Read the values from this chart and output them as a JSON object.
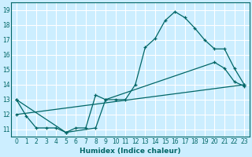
{
  "xlabel": "Humidex (Indice chaleur)",
  "bg_color": "#cceeff",
  "grid_color": "#ffffff",
  "line_color": "#006666",
  "xlim": [
    -0.5,
    23.5
  ],
  "ylim": [
    10.5,
    19.5
  ],
  "xticks": [
    0,
    1,
    2,
    3,
    4,
    5,
    6,
    7,
    8,
    9,
    10,
    11,
    12,
    13,
    14,
    15,
    16,
    17,
    18,
    19,
    20,
    21,
    22,
    23
  ],
  "yticks": [
    11,
    12,
    13,
    14,
    15,
    16,
    17,
    18,
    19
  ],
  "line1_x": [
    0,
    1,
    2,
    3,
    4,
    5,
    6,
    7,
    8,
    9,
    10,
    11,
    12,
    13,
    14,
    15,
    16,
    17,
    18,
    19,
    20,
    21,
    22,
    23
  ],
  "line1_y": [
    13.0,
    11.9,
    11.1,
    11.1,
    11.1,
    10.8,
    11.1,
    11.1,
    13.3,
    13.0,
    13.0,
    13.0,
    14.0,
    16.5,
    17.1,
    18.3,
    18.9,
    18.5,
    17.8,
    17.0,
    16.4,
    16.4,
    15.1,
    14.0
  ],
  "line2_x": [
    0,
    23
  ],
  "line2_y": [
    12.0,
    14.0
  ],
  "line3_x": [
    0,
    5,
    8,
    9,
    20,
    21,
    22,
    23
  ],
  "line3_y": [
    13.0,
    10.8,
    11.1,
    13.0,
    15.5,
    15.1,
    14.2,
    13.9
  ]
}
